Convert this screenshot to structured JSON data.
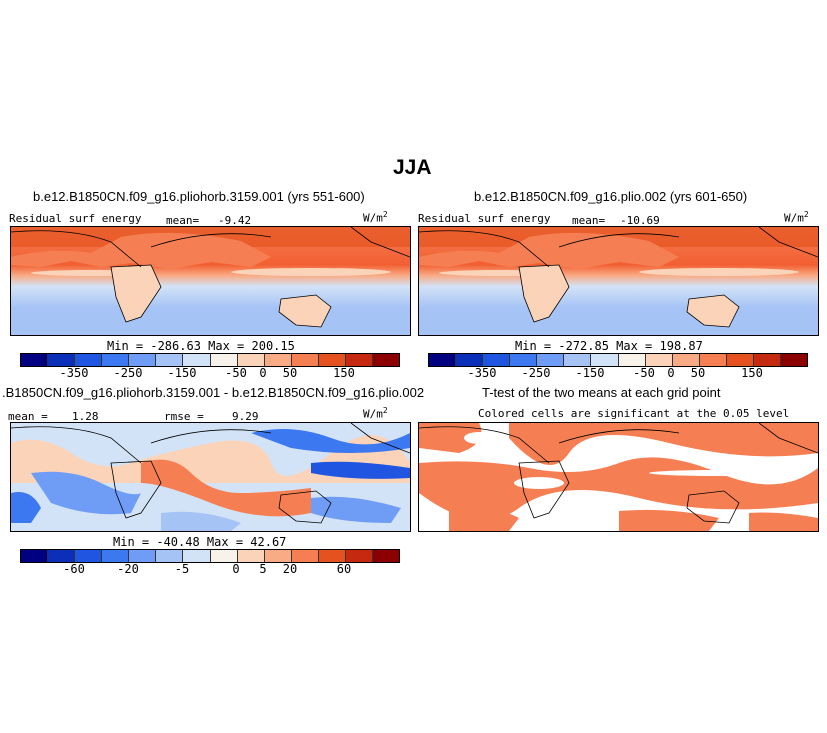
{
  "page": {
    "season": "JJA"
  },
  "chart_data": [
    {
      "type": "heatmap",
      "title": "b.e12.B1850CN.f09_g16.pliohorb.3159.001 (yrs 551-600)",
      "variable": "Residual surf energy",
      "units": "W/m",
      "units_sup": "2",
      "mean_label": "mean=",
      "mean": "-9.42",
      "min_label": "Min = -286.63 Max = 200.15",
      "min": -286.63,
      "max": 200.15,
      "colorbar_ticks": [
        "-350",
        "-250",
        "-150",
        "-50",
        "0",
        "50",
        "150"
      ],
      "colorbar_colors": [
        "#000080",
        "#0b2fb8",
        "#1f55e0",
        "#3c78f0",
        "#6f9df5",
        "#a5c3f5",
        "#d3e3f7",
        "#f8f3ea",
        "#fbd3b9",
        "#f9ab86",
        "#f57f52",
        "#e5521f",
        "#c5290f",
        "#8b0000"
      ]
    },
    {
      "type": "heatmap",
      "title": "b.e12.B1850CN.f09_g16.plio.002 (yrs 601-650)",
      "variable": "Residual surf energy",
      "units": "W/m",
      "units_sup": "2",
      "mean_label": "mean=",
      "mean": "-10.69",
      "min_label": "Min = -272.85 Max = 198.87",
      "min": -272.85,
      "max": 198.87,
      "colorbar_ticks": [
        "-350",
        "-250",
        "-150",
        "-50",
        "0",
        "50",
        "150"
      ],
      "colorbar_colors": [
        "#000080",
        "#0b2fb8",
        "#1f55e0",
        "#3c78f0",
        "#6f9df5",
        "#a5c3f5",
        "#d3e3f7",
        "#f8f3ea",
        "#fbd3b9",
        "#f9ab86",
        "#f57f52",
        "#e5521f",
        "#c5290f",
        "#8b0000"
      ]
    },
    {
      "type": "heatmap",
      "title": ".B1850CN.f09_g16.pliohorb.3159.001 - b.e12.B1850CN.f09_g16.plio.002",
      "mean_label": "mean =",
      "mean": "1.28",
      "rmse_label": "rmse =",
      "rmse": "9.29",
      "units": "W/m",
      "units_sup": "2",
      "min_label": "Min = -40.48 Max = 42.67",
      "min": -40.48,
      "max": 42.67,
      "colorbar_ticks": [
        "-60",
        "-20",
        "-5",
        "0",
        "5",
        "20",
        "60"
      ],
      "colorbar_colors": [
        "#000080",
        "#0b2fb8",
        "#1f55e0",
        "#3c78f0",
        "#6f9df5",
        "#a5c3f5",
        "#d3e3f7",
        "#f8f3ea",
        "#fbd3b9",
        "#f9ab86",
        "#f57f52",
        "#e5521f",
        "#c5290f",
        "#8b0000"
      ]
    },
    {
      "type": "heatmap",
      "title": "T-test of the two means at each grid point",
      "subtitle": "Colored cells are significant at the 0.05 level",
      "significant_color": "#f57f52"
    }
  ]
}
